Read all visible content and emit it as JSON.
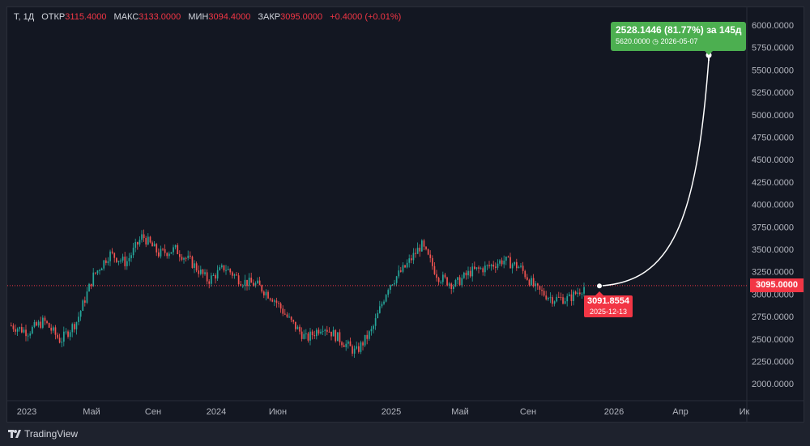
{
  "legend": {
    "symbol": "T, 1Д",
    "open_label": "ОТКР",
    "open": "3115.4000",
    "high_label": "МАКС",
    "high": "3133.0000",
    "low_label": "МИН",
    "low": "3094.4000",
    "close_label": "ЗАКР",
    "close": "3095.0000",
    "change": "+0.4000 (+0.01%)"
  },
  "price_axis": [
    "6000.0000",
    "5750.0000",
    "5500.0000",
    "5250.0000",
    "5000.0000",
    "4750.0000",
    "4500.0000",
    "4250.0000",
    "4000.0000",
    "3750.0000",
    "3500.0000",
    "3250.0000",
    "3000.0000",
    "2750.0000",
    "2500.0000",
    "2250.0000",
    "2000.0000"
  ],
  "time_axis": [
    "2023",
    "Май",
    "Сен",
    "2024",
    "Июн",
    "2025",
    "Май",
    "Сен",
    "2026",
    "Апр",
    "Ик"
  ],
  "current_price": "3095.0000",
  "forecast": {
    "start_price": "3091.8554",
    "start_date": "2025-12-13",
    "change_text": "2528.1446 (81.77%) за 145д",
    "target_price": "5620.0000",
    "target_date": "2026-05-07"
  },
  "brand": "TradingView",
  "colors": {
    "up": "#26a69a",
    "down": "#ef5350",
    "forecast": "#4caf50",
    "price": "#f23645"
  },
  "chart_data": {
    "type": "candlestick",
    "interval": "1Д",
    "y_range": [
      1850,
      6180
    ],
    "path_points": [
      {
        "date": "2023-01",
        "price": 2650
      },
      {
        "date": "2023-02",
        "price": 2580
      },
      {
        "date": "2023-03",
        "price": 2700
      },
      {
        "date": "2023-04",
        "price": 2480
      },
      {
        "date": "2023-05",
        "price": 2700
      },
      {
        "date": "2023-06",
        "price": 3200
      },
      {
        "date": "2023-07",
        "price": 3450
      },
      {
        "date": "2023-08",
        "price": 3350
      },
      {
        "date": "2023-09",
        "price": 3650
      },
      {
        "date": "2023-10",
        "price": 3450
      },
      {
        "date": "2023-11",
        "price": 3500
      },
      {
        "date": "2023-12",
        "price": 3350
      },
      {
        "date": "2024-01",
        "price": 3150
      },
      {
        "date": "2024-02",
        "price": 3300
      },
      {
        "date": "2024-03",
        "price": 3150
      },
      {
        "date": "2024-04",
        "price": 3100
      },
      {
        "date": "2024-05",
        "price": 2950
      },
      {
        "date": "2024-06",
        "price": 2700
      },
      {
        "date": "2024-07",
        "price": 2500
      },
      {
        "date": "2024-08",
        "price": 2650
      },
      {
        "date": "2024-09",
        "price": 2500
      },
      {
        "date": "2024-10",
        "price": 2350
      },
      {
        "date": "2024-11",
        "price": 2600
      },
      {
        "date": "2024-12",
        "price": 3100
      },
      {
        "date": "2025-01",
        "price": 3300
      },
      {
        "date": "2025-02",
        "price": 3550
      },
      {
        "date": "2025-03",
        "price": 3200
      },
      {
        "date": "2025-04",
        "price": 3100
      },
      {
        "date": "2025-05",
        "price": 3250
      },
      {
        "date": "2025-06",
        "price": 3300
      },
      {
        "date": "2025-07",
        "price": 3380
      },
      {
        "date": "2025-08",
        "price": 3300
      },
      {
        "date": "2025-09",
        "price": 3050
      },
      {
        "date": "2025-10",
        "price": 2950
      },
      {
        "date": "2025-11",
        "price": 2950
      },
      {
        "date": "2025-12",
        "price": 3095
      }
    ]
  }
}
